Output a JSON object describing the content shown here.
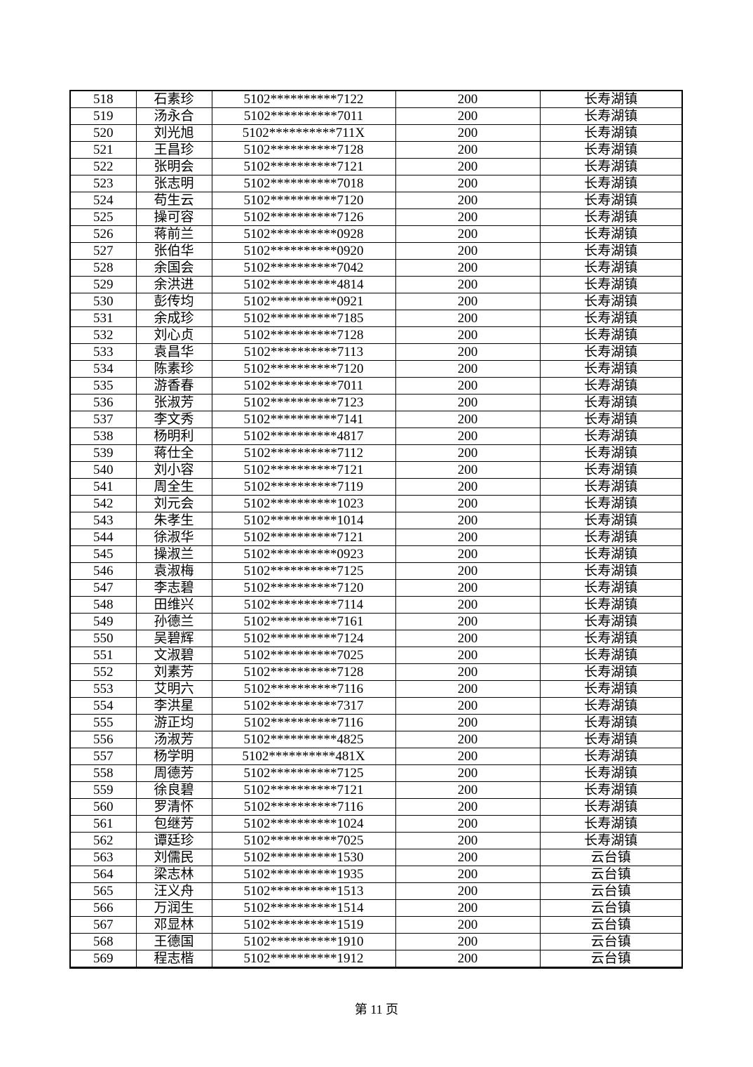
{
  "document": {
    "footer": {
      "page_label": "第 11 页"
    }
  },
  "table": {
    "rows": [
      {
        "no": "518",
        "name": "石素珍",
        "id": "5102**********7122",
        "amount": "200",
        "town": "长寿湖镇"
      },
      {
        "no": "519",
        "name": "汤永合",
        "id": "5102**********7011",
        "amount": "200",
        "town": "长寿湖镇"
      },
      {
        "no": "520",
        "name": "刘光旭",
        "id": "5102**********711X",
        "amount": "200",
        "town": "长寿湖镇"
      },
      {
        "no": "521",
        "name": "王昌珍",
        "id": "5102**********7128",
        "amount": "200",
        "town": "长寿湖镇"
      },
      {
        "no": "522",
        "name": "张明会",
        "id": "5102**********7121",
        "amount": "200",
        "town": "长寿湖镇"
      },
      {
        "no": "523",
        "name": "张志明",
        "id": "5102**********7018",
        "amount": "200",
        "town": "长寿湖镇"
      },
      {
        "no": "524",
        "name": "苟生云",
        "id": "5102**********7120",
        "amount": "200",
        "town": "长寿湖镇"
      },
      {
        "no": "525",
        "name": "操可容",
        "id": "5102**********7126",
        "amount": "200",
        "town": "长寿湖镇"
      },
      {
        "no": "526",
        "name": "蒋前兰",
        "id": "5102**********0928",
        "amount": "200",
        "town": "长寿湖镇"
      },
      {
        "no": "527",
        "name": "张伯华",
        "id": "5102**********0920",
        "amount": "200",
        "town": "长寿湖镇"
      },
      {
        "no": "528",
        "name": "余国会",
        "id": "5102**********7042",
        "amount": "200",
        "town": "长寿湖镇"
      },
      {
        "no": "529",
        "name": "余洪进",
        "id": "5102**********4814",
        "amount": "200",
        "town": "长寿湖镇"
      },
      {
        "no": "530",
        "name": "彭传均",
        "id": "5102**********0921",
        "amount": "200",
        "town": "长寿湖镇"
      },
      {
        "no": "531",
        "name": "余成珍",
        "id": "5102**********7185",
        "amount": "200",
        "town": "长寿湖镇"
      },
      {
        "no": "532",
        "name": "刘心贞",
        "id": "5102**********7128",
        "amount": "200",
        "town": "长寿湖镇"
      },
      {
        "no": "533",
        "name": "袁昌华",
        "id": "5102**********7113",
        "amount": "200",
        "town": "长寿湖镇"
      },
      {
        "no": "534",
        "name": "陈素珍",
        "id": "5102**********7120",
        "amount": "200",
        "town": "长寿湖镇"
      },
      {
        "no": "535",
        "name": "游香春",
        "id": "5102**********7011",
        "amount": "200",
        "town": "长寿湖镇"
      },
      {
        "no": "536",
        "name": "张淑芳",
        "id": "5102**********7123",
        "amount": "200",
        "town": "长寿湖镇"
      },
      {
        "no": "537",
        "name": "李文秀",
        "id": "5102**********7141",
        "amount": "200",
        "town": "长寿湖镇"
      },
      {
        "no": "538",
        "name": "杨明利",
        "id": "5102**********4817",
        "amount": "200",
        "town": "长寿湖镇"
      },
      {
        "no": "539",
        "name": "蒋仕全",
        "id": "5102**********7112",
        "amount": "200",
        "town": "长寿湖镇"
      },
      {
        "no": "540",
        "name": "刘小容",
        "id": "5102**********7121",
        "amount": "200",
        "town": "长寿湖镇"
      },
      {
        "no": "541",
        "name": "周全生",
        "id": "5102**********7119",
        "amount": "200",
        "town": "长寿湖镇"
      },
      {
        "no": "542",
        "name": "刘元会",
        "id": "5102**********1023",
        "amount": "200",
        "town": "长寿湖镇"
      },
      {
        "no": "543",
        "name": "朱孝生",
        "id": "5102**********1014",
        "amount": "200",
        "town": "长寿湖镇"
      },
      {
        "no": "544",
        "name": "徐淑华",
        "id": "5102**********7121",
        "amount": "200",
        "town": "长寿湖镇"
      },
      {
        "no": "545",
        "name": "操淑兰",
        "id": "5102**********0923",
        "amount": "200",
        "town": "长寿湖镇"
      },
      {
        "no": "546",
        "name": "袁淑梅",
        "id": "5102**********7125",
        "amount": "200",
        "town": "长寿湖镇"
      },
      {
        "no": "547",
        "name": "李志碧",
        "id": "5102**********7120",
        "amount": "200",
        "town": "长寿湖镇"
      },
      {
        "no": "548",
        "name": "田维兴",
        "id": "5102**********7114",
        "amount": "200",
        "town": "长寿湖镇"
      },
      {
        "no": "549",
        "name": "孙德兰",
        "id": "5102**********7161",
        "amount": "200",
        "town": "长寿湖镇"
      },
      {
        "no": "550",
        "name": "吴碧辉",
        "id": "5102**********7124",
        "amount": "200",
        "town": "长寿湖镇"
      },
      {
        "no": "551",
        "name": "文淑碧",
        "id": "5102**********7025",
        "amount": "200",
        "town": "长寿湖镇"
      },
      {
        "no": "552",
        "name": "刘素芳",
        "id": "5102**********7128",
        "amount": "200",
        "town": "长寿湖镇"
      },
      {
        "no": "553",
        "name": "艾明六",
        "id": "5102**********7116",
        "amount": "200",
        "town": "长寿湖镇"
      },
      {
        "no": "554",
        "name": "李洪星",
        "id": "5102**********7317",
        "amount": "200",
        "town": "长寿湖镇"
      },
      {
        "no": "555",
        "name": "游正均",
        "id": "5102**********7116",
        "amount": "200",
        "town": "长寿湖镇"
      },
      {
        "no": "556",
        "name": "汤淑芳",
        "id": "5102**********4825",
        "amount": "200",
        "town": "长寿湖镇"
      },
      {
        "no": "557",
        "name": "杨学明",
        "id": "5102**********481X",
        "amount": "200",
        "town": "长寿湖镇"
      },
      {
        "no": "558",
        "name": "周德芳",
        "id": "5102**********7125",
        "amount": "200",
        "town": "长寿湖镇"
      },
      {
        "no": "559",
        "name": "徐良碧",
        "id": "5102**********7121",
        "amount": "200",
        "town": "长寿湖镇"
      },
      {
        "no": "560",
        "name": "罗清怀",
        "id": "5102**********7116",
        "amount": "200",
        "town": "长寿湖镇"
      },
      {
        "no": "561",
        "name": "包继芳",
        "id": "5102**********1024",
        "amount": "200",
        "town": "长寿湖镇"
      },
      {
        "no": "562",
        "name": "谭廷珍",
        "id": "5102**********7025",
        "amount": "200",
        "town": "长寿湖镇"
      },
      {
        "no": "563",
        "name": "刘儒民",
        "id": "5102**********1530",
        "amount": "200",
        "town": "云台镇"
      },
      {
        "no": "564",
        "name": "梁志林",
        "id": "5102**********1935",
        "amount": "200",
        "town": "云台镇"
      },
      {
        "no": "565",
        "name": "汪义舟",
        "id": "5102**********1513",
        "amount": "200",
        "town": "云台镇"
      },
      {
        "no": "566",
        "name": "万润生",
        "id": "5102**********1514",
        "amount": "200",
        "town": "云台镇"
      },
      {
        "no": "567",
        "name": "邓显林",
        "id": "5102**********1519",
        "amount": "200",
        "town": "云台镇"
      },
      {
        "no": "568",
        "name": "王德国",
        "id": "5102**********1910",
        "amount": "200",
        "town": "云台镇"
      },
      {
        "no": "569",
        "name": "程志楷",
        "id": "5102**********1912",
        "amount": "200",
        "town": "云台镇"
      }
    ]
  }
}
